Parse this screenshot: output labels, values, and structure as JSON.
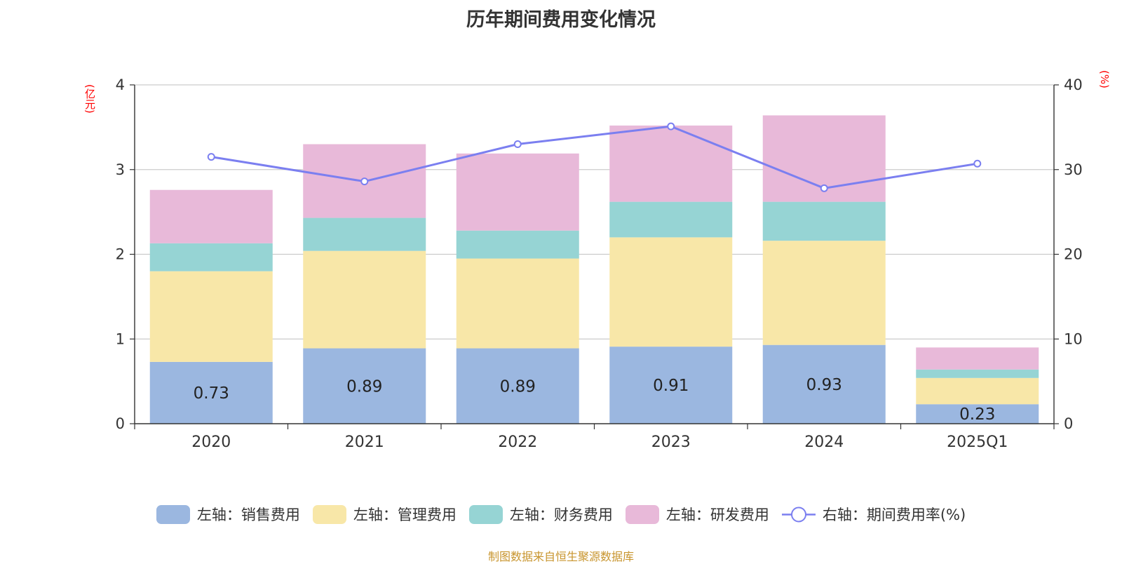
{
  "chart_data": {
    "type": "bar",
    "title": "历年期间费用变化情况",
    "categories": [
      "2020",
      "2021",
      "2022",
      "2023",
      "2024",
      "2025Q1"
    ],
    "stacked": true,
    "y_left": {
      "unit": "(亿元)",
      "ylim": [
        0,
        4
      ],
      "ticks": [
        "0",
        "1",
        "2",
        "3",
        "4"
      ]
    },
    "y_right": {
      "unit": "(%)",
      "ylim": [
        0,
        40
      ],
      "ticks": [
        "0",
        "10",
        "20",
        "30",
        "40"
      ]
    },
    "grid": true,
    "legend_position": "bottom",
    "series": [
      {
        "name": "左轴：销售费用",
        "axis": "left",
        "color": "#9bb7e0",
        "values": [
          0.73,
          0.89,
          0.89,
          0.91,
          0.93,
          0.23
        ],
        "labels": [
          "0.73",
          "0.89",
          "0.89",
          "0.91",
          "0.93",
          "0.23"
        ]
      },
      {
        "name": "左轴：管理费用",
        "axis": "left",
        "color": "#f8e7a8",
        "values": [
          1.07,
          1.15,
          1.06,
          1.29,
          1.23,
          0.31
        ]
      },
      {
        "name": "左轴：财务费用",
        "axis": "left",
        "color": "#96d4d4",
        "values": [
          0.33,
          0.39,
          0.33,
          0.42,
          0.46,
          0.1
        ]
      },
      {
        "name": "左轴：研发费用",
        "axis": "left",
        "color": "#e8b9d9",
        "values": [
          0.63,
          0.87,
          0.91,
          0.9,
          1.02,
          0.26
        ]
      },
      {
        "name": "右轴：期间费用率(%)",
        "axis": "right",
        "type": "line",
        "color": "#7b7ff0",
        "values": [
          31.5,
          28.6,
          33.0,
          35.1,
          27.8,
          30.7
        ]
      }
    ]
  },
  "source": "制图数据来自恒生聚源数据库"
}
